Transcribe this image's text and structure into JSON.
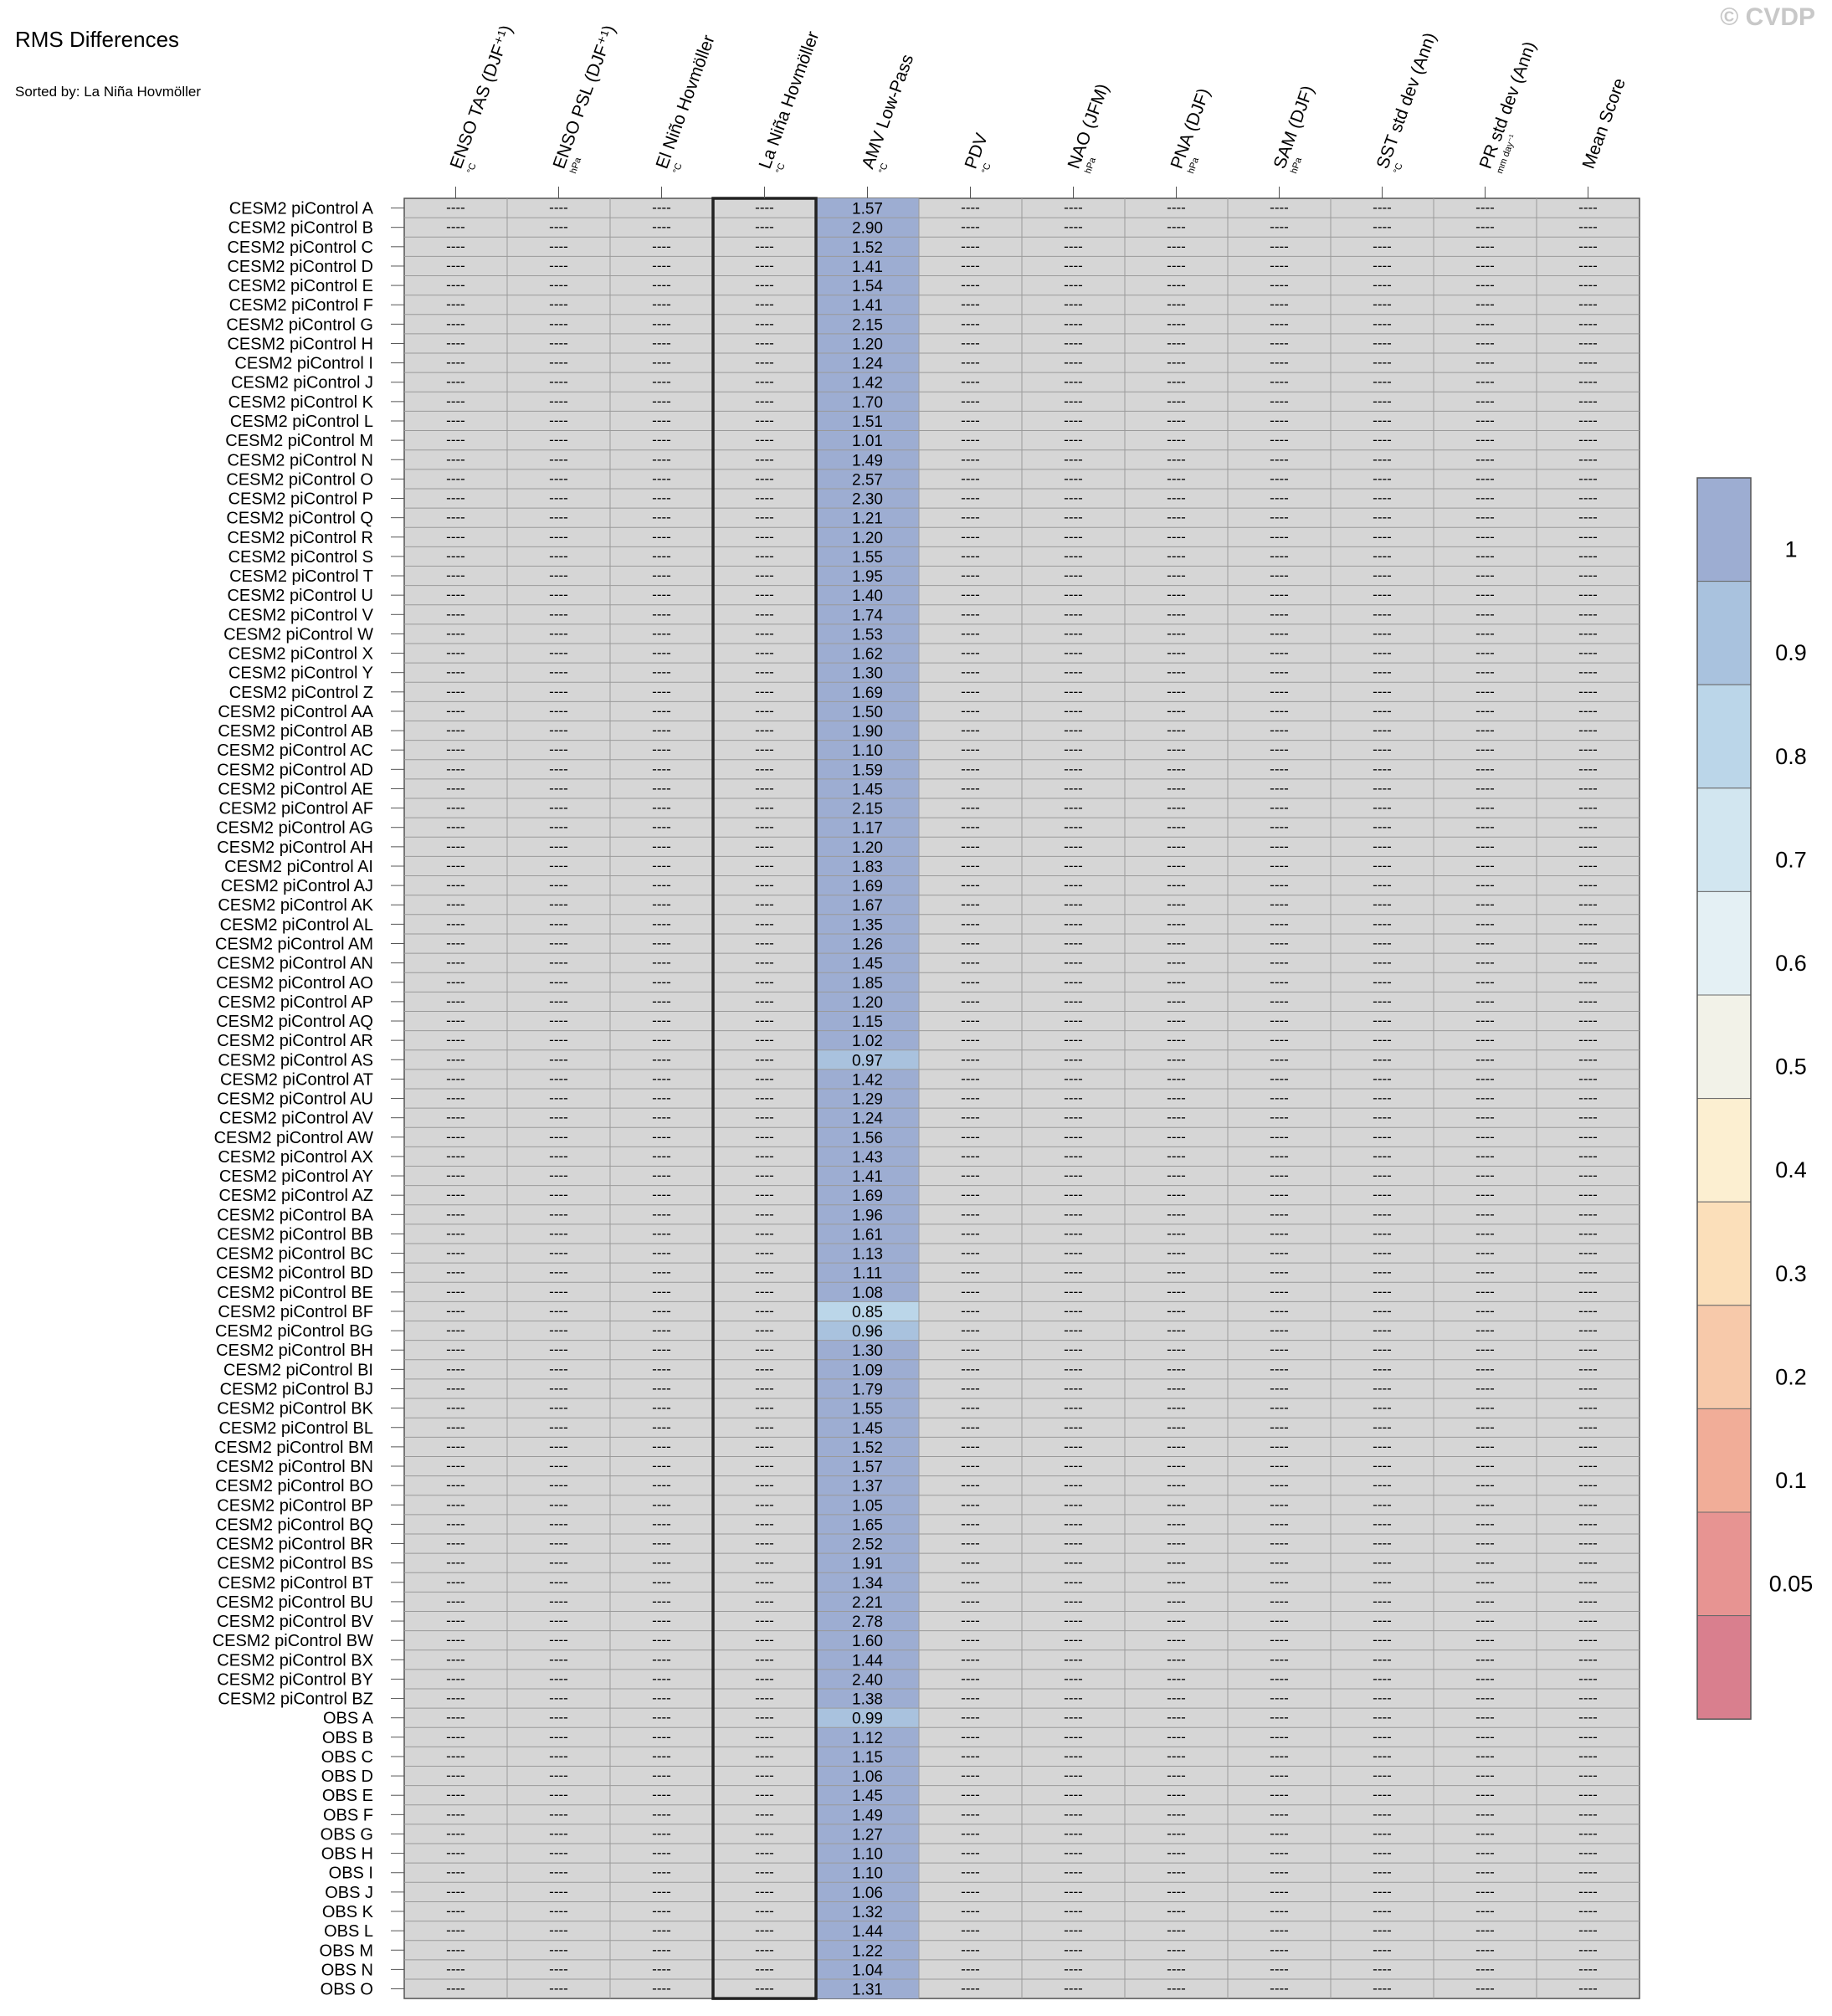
{
  "header": {
    "title": "RMS Differences",
    "subtitle": "Sorted by: La Niña Hovmöller",
    "credit": "© CVDP"
  },
  "chart_data": {
    "type": "table",
    "title": "RMS Differences",
    "sorted_by": "La Niña Hovmöller",
    "highlighted_column": "La Niña Hovmöller",
    "missing_value": "----",
    "columns": [
      {
        "label": "ENSO TAS (DJF⁺¹)",
        "unit": "°C"
      },
      {
        "label": "ENSO PSL (DJF⁺¹)",
        "unit": "hPa"
      },
      {
        "label": "El Niño Hovmöller",
        "unit": "°C"
      },
      {
        "label": "La Niña Hovmöller",
        "unit": "°C"
      },
      {
        "label": "AMV Low-Pass",
        "unit": "°C"
      },
      {
        "label": "PDV",
        "unit": "°C"
      },
      {
        "label": "NAO (JFM)",
        "unit": "hPa"
      },
      {
        "label": "PNA (DJF)",
        "unit": "hPa"
      },
      {
        "label": "SAM (DJF)",
        "unit": "hPa"
      },
      {
        "label": "SST std dev (Ann)",
        "unit": "°C"
      },
      {
        "label": "PR std dev (Ann)",
        "unit": "mm day⁻¹"
      },
      {
        "label": "Mean Score",
        "unit": ""
      }
    ],
    "rows": [
      "CESM2 piControl A",
      "CESM2 piControl B",
      "CESM2 piControl C",
      "CESM2 piControl D",
      "CESM2 piControl E",
      "CESM2 piControl F",
      "CESM2 piControl G",
      "CESM2 piControl H",
      "CESM2 piControl I",
      "CESM2 piControl J",
      "CESM2 piControl K",
      "CESM2 piControl L",
      "CESM2 piControl M",
      "CESM2 piControl N",
      "CESM2 piControl O",
      "CESM2 piControl P",
      "CESM2 piControl Q",
      "CESM2 piControl R",
      "CESM2 piControl S",
      "CESM2 piControl T",
      "CESM2 piControl U",
      "CESM2 piControl V",
      "CESM2 piControl W",
      "CESM2 piControl X",
      "CESM2 piControl Y",
      "CESM2 piControl Z",
      "CESM2 piControl AA",
      "CESM2 piControl AB",
      "CESM2 piControl AC",
      "CESM2 piControl AD",
      "CESM2 piControl AE",
      "CESM2 piControl AF",
      "CESM2 piControl AG",
      "CESM2 piControl AH",
      "CESM2 piControl AI",
      "CESM2 piControl AJ",
      "CESM2 piControl AK",
      "CESM2 piControl AL",
      "CESM2 piControl AM",
      "CESM2 piControl AN",
      "CESM2 piControl AO",
      "CESM2 piControl AP",
      "CESM2 piControl AQ",
      "CESM2 piControl AR",
      "CESM2 piControl AS",
      "CESM2 piControl AT",
      "CESM2 piControl AU",
      "CESM2 piControl AV",
      "CESM2 piControl AW",
      "CESM2 piControl AX",
      "CESM2 piControl AY",
      "CESM2 piControl AZ",
      "CESM2 piControl BA",
      "CESM2 piControl BB",
      "CESM2 piControl BC",
      "CESM2 piControl BD",
      "CESM2 piControl BE",
      "CESM2 piControl BF",
      "CESM2 piControl BG",
      "CESM2 piControl BH",
      "CESM2 piControl BI",
      "CESM2 piControl BJ",
      "CESM2 piControl BK",
      "CESM2 piControl BL",
      "CESM2 piControl BM",
      "CESM2 piControl BN",
      "CESM2 piControl BO",
      "CESM2 piControl BP",
      "CESM2 piControl BQ",
      "CESM2 piControl BR",
      "CESM2 piControl BS",
      "CESM2 piControl BT",
      "CESM2 piControl BU",
      "CESM2 piControl BV",
      "CESM2 piControl BW",
      "CESM2 piControl BX",
      "CESM2 piControl BY",
      "CESM2 piControl BZ",
      "OBS A",
      "OBS B",
      "OBS C",
      "OBS D",
      "OBS E",
      "OBS F",
      "OBS G",
      "OBS H",
      "OBS I",
      "OBS J",
      "OBS K",
      "OBS L",
      "OBS M",
      "OBS N",
      "OBS O"
    ],
    "values_column": "AMV Low-Pass",
    "values": [
      1.57,
      2.9,
      1.52,
      1.41,
      1.54,
      1.41,
      2.15,
      1.2,
      1.24,
      1.42,
      1.7,
      1.51,
      1.01,
      1.49,
      2.57,
      2.3,
      1.21,
      1.2,
      1.55,
      1.95,
      1.4,
      1.74,
      1.53,
      1.62,
      1.3,
      1.69,
      1.5,
      1.9,
      1.1,
      1.59,
      1.45,
      2.15,
      1.17,
      1.2,
      1.83,
      1.69,
      1.67,
      1.35,
      1.26,
      1.45,
      1.85,
      1.2,
      1.15,
      1.02,
      0.97,
      1.42,
      1.29,
      1.24,
      1.56,
      1.43,
      1.41,
      1.69,
      1.96,
      1.61,
      1.13,
      1.11,
      1.08,
      0.85,
      0.96,
      1.3,
      1.09,
      1.79,
      1.55,
      1.45,
      1.52,
      1.57,
      1.37,
      1.05,
      1.65,
      2.52,
      1.91,
      1.34,
      2.21,
      2.78,
      1.6,
      1.44,
      2.4,
      1.38,
      0.99,
      1.12,
      1.15,
      1.06,
      1.45,
      1.49,
      1.27,
      1.1,
      1.1,
      1.06,
      1.32,
      1.44,
      1.22,
      1.04,
      1.31
    ],
    "colorbar": {
      "labels": [
        "1",
        "0.9",
        "0.8",
        "0.7",
        "0.6",
        "0.5",
        "0.4",
        "0.3",
        "0.2",
        "0.1",
        "0.05"
      ],
      "colors": [
        "#9dadd2",
        "#a9c2de",
        "#bbd6e9",
        "#d2e6f0",
        "#e4f0f4",
        "#f2f2e8",
        "#fcefd1",
        "#fbdfba",
        "#f7c9aa",
        "#f1ad98",
        "#e79492",
        "#d97f8e"
      ]
    },
    "missing_color": "#d6d6d6"
  }
}
